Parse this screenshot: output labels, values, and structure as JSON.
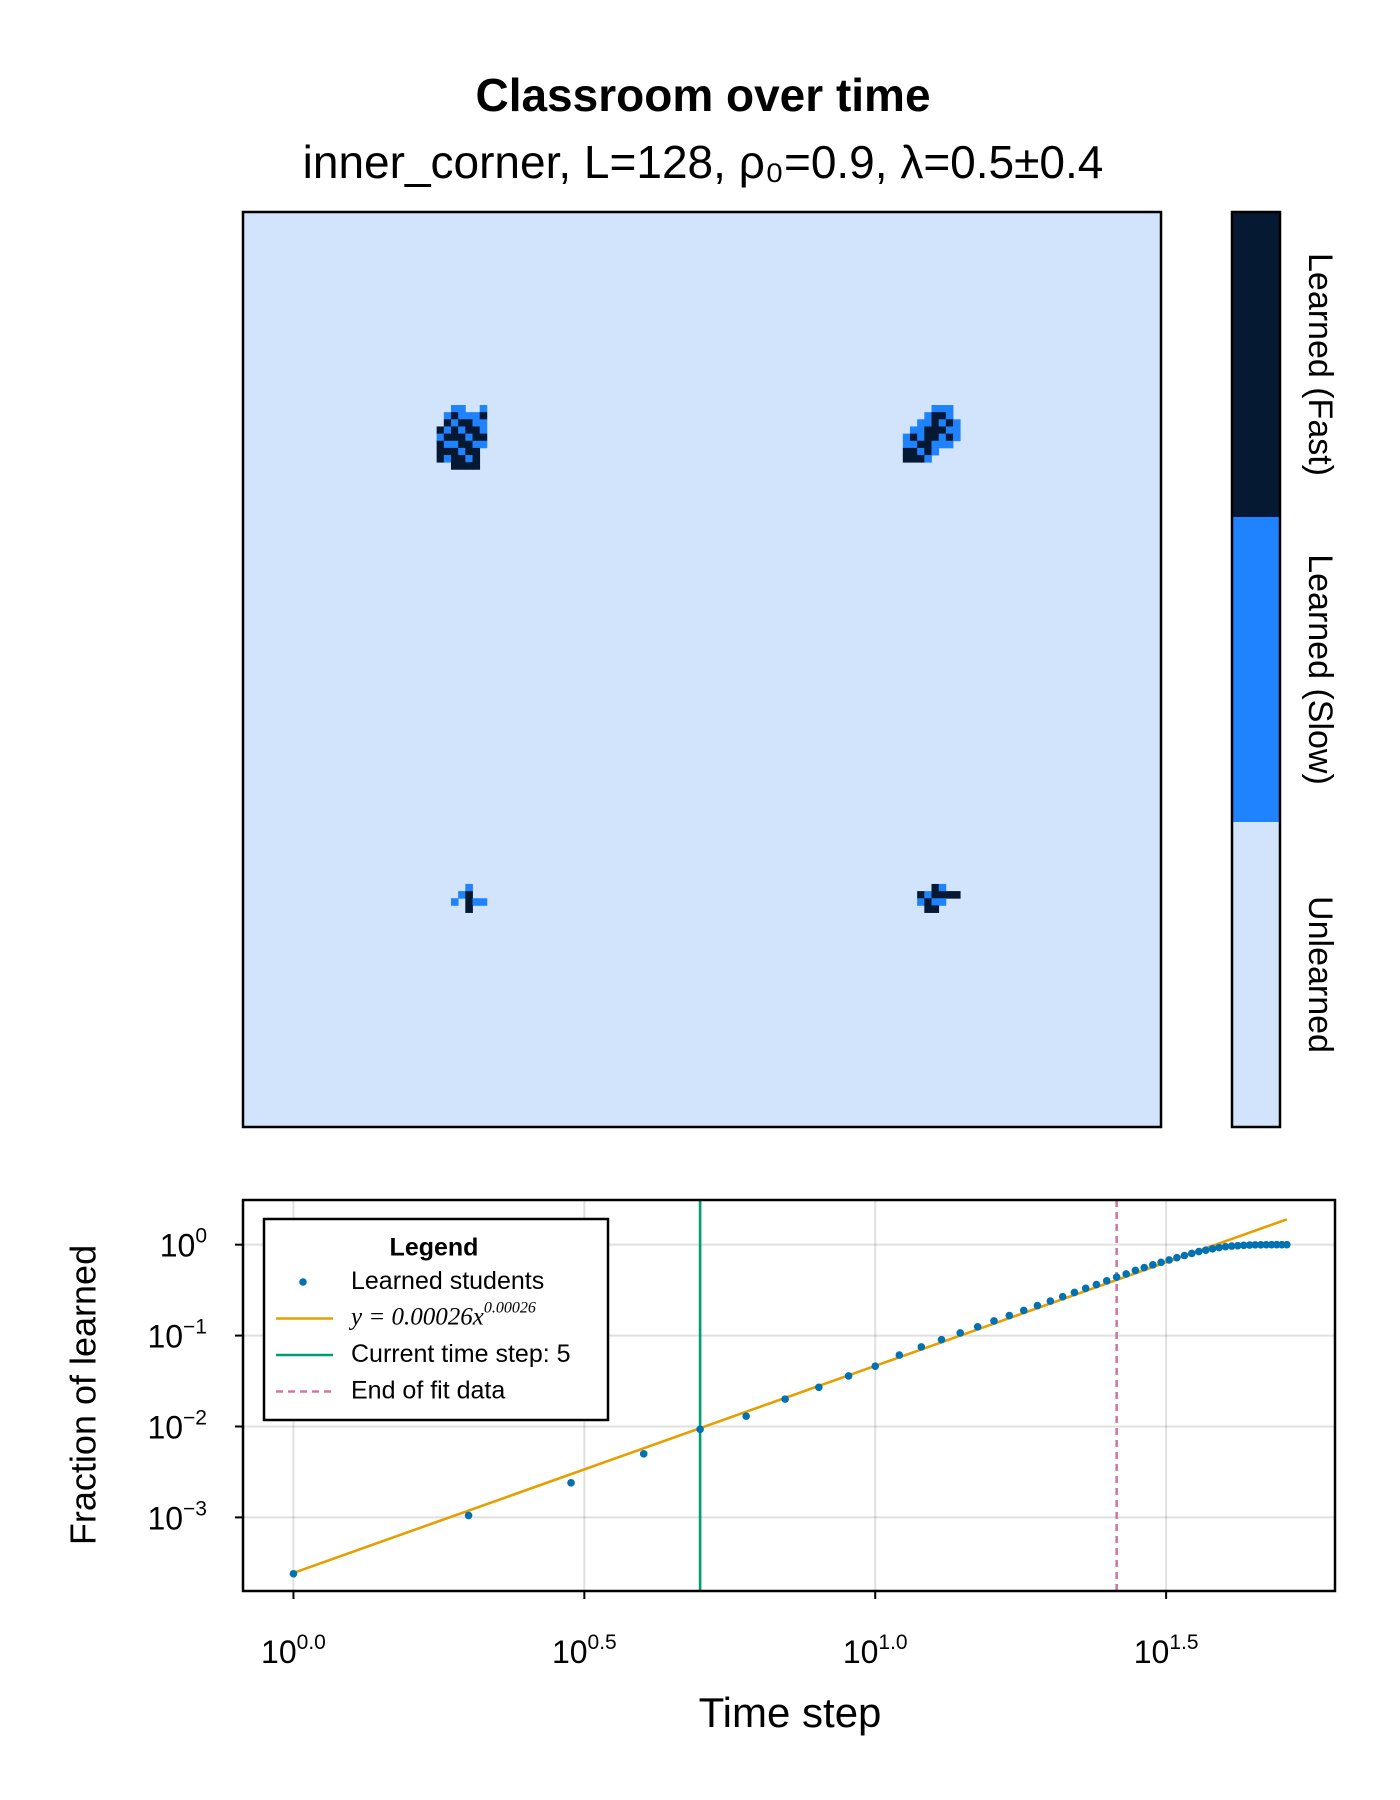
{
  "chart_data": [
    {
      "type": "heatmap",
      "title": "Classroom over time",
      "subtitle": "inner_corner, L=128, ρ₀=0.9, λ=0.5±0.4",
      "xlim": [
        0,
        128
      ],
      "ylim": [
        0,
        128
      ],
      "categories": [
        "Unlearned",
        "Learned (Slow)",
        "Learned (Fast)"
      ],
      "colors": [
        "#d2e4fc",
        "#1f82ff",
        "#061933"
      ],
      "cells": [
        [
          29,
          27,
          1
        ],
        [
          30,
          27,
          1
        ],
        [
          33,
          27,
          1
        ],
        [
          28,
          28,
          1
        ],
        [
          29,
          28,
          2
        ],
        [
          30,
          28,
          1
        ],
        [
          31,
          28,
          1
        ],
        [
          32,
          28,
          1
        ],
        [
          33,
          28,
          2
        ],
        [
          28,
          29,
          2
        ],
        [
          29,
          29,
          1
        ],
        [
          30,
          29,
          2
        ],
        [
          31,
          29,
          2
        ],
        [
          32,
          29,
          1
        ],
        [
          33,
          29,
          1
        ],
        [
          27,
          30,
          2
        ],
        [
          28,
          30,
          1
        ],
        [
          29,
          30,
          2
        ],
        [
          30,
          30,
          1
        ],
        [
          31,
          30,
          2
        ],
        [
          32,
          30,
          2
        ],
        [
          33,
          30,
          1
        ],
        [
          27,
          31,
          1
        ],
        [
          28,
          31,
          2
        ],
        [
          29,
          31,
          2
        ],
        [
          30,
          31,
          2
        ],
        [
          31,
          31,
          1
        ],
        [
          32,
          31,
          2
        ],
        [
          33,
          31,
          2
        ],
        [
          27,
          32,
          2
        ],
        [
          28,
          32,
          1
        ],
        [
          29,
          32,
          1
        ],
        [
          30,
          32,
          2
        ],
        [
          31,
          32,
          2
        ],
        [
          32,
          32,
          1
        ],
        [
          33,
          32,
          1
        ],
        [
          27,
          33,
          2
        ],
        [
          28,
          33,
          2
        ],
        [
          29,
          33,
          2
        ],
        [
          30,
          33,
          1
        ],
        [
          31,
          33,
          2
        ],
        [
          32,
          33,
          2
        ],
        [
          27,
          34,
          2
        ],
        [
          28,
          34,
          1
        ],
        [
          29,
          34,
          2
        ],
        [
          30,
          34,
          2
        ],
        [
          31,
          34,
          1
        ],
        [
          32,
          34,
          2
        ],
        [
          29,
          35,
          2
        ],
        [
          30,
          35,
          2
        ],
        [
          31,
          35,
          2
        ],
        [
          32,
          35,
          2
        ],
        [
          96,
          27,
          1
        ],
        [
          97,
          27,
          1
        ],
        [
          98,
          27,
          1
        ],
        [
          95,
          28,
          1
        ],
        [
          96,
          28,
          2
        ],
        [
          97,
          28,
          2
        ],
        [
          98,
          28,
          1
        ],
        [
          94,
          29,
          1
        ],
        [
          95,
          29,
          1
        ],
        [
          96,
          29,
          2
        ],
        [
          97,
          29,
          1
        ],
        [
          98,
          29,
          2
        ],
        [
          99,
          29,
          1
        ],
        [
          93,
          30,
          1
        ],
        [
          94,
          30,
          1
        ],
        [
          95,
          30,
          2
        ],
        [
          96,
          30,
          2
        ],
        [
          97,
          30,
          2
        ],
        [
          98,
          30,
          1
        ],
        [
          99,
          30,
          1
        ],
        [
          92,
          31,
          1
        ],
        [
          93,
          31,
          2
        ],
        [
          94,
          31,
          1
        ],
        [
          95,
          31,
          2
        ],
        [
          96,
          31,
          2
        ],
        [
          97,
          31,
          1
        ],
        [
          98,
          31,
          2
        ],
        [
          99,
          31,
          1
        ],
        [
          92,
          32,
          1
        ],
        [
          93,
          32,
          1
        ],
        [
          94,
          32,
          2
        ],
        [
          95,
          32,
          2
        ],
        [
          96,
          32,
          1
        ],
        [
          97,
          32,
          1
        ],
        [
          98,
          32,
          1
        ],
        [
          92,
          33,
          2
        ],
        [
          93,
          33,
          2
        ],
        [
          94,
          33,
          1
        ],
        [
          95,
          33,
          2
        ],
        [
          96,
          33,
          1
        ],
        [
          92,
          34,
          2
        ],
        [
          93,
          34,
          2
        ],
        [
          94,
          34,
          2
        ],
        [
          95,
          34,
          1
        ],
        [
          31,
          94,
          1
        ],
        [
          30,
          95,
          1
        ],
        [
          31,
          95,
          2
        ],
        [
          29,
          96,
          1
        ],
        [
          31,
          96,
          2
        ],
        [
          32,
          96,
          1
        ],
        [
          33,
          96,
          1
        ],
        [
          31,
          97,
          2
        ],
        [
          96,
          94,
          2
        ],
        [
          97,
          94,
          1
        ],
        [
          94,
          95,
          2
        ],
        [
          95,
          95,
          1
        ],
        [
          96,
          95,
          2
        ],
        [
          97,
          95,
          2
        ],
        [
          98,
          95,
          2
        ],
        [
          99,
          95,
          2
        ],
        [
          94,
          96,
          1
        ],
        [
          95,
          96,
          2
        ],
        [
          96,
          96,
          1
        ],
        [
          97,
          96,
          1
        ],
        [
          95,
          97,
          2
        ],
        [
          96,
          97,
          2
        ]
      ]
    },
    {
      "type": "line",
      "x_label": "Time step",
      "y_label": "Fraction of learned",
      "xscale": "log",
      "yscale": "log",
      "grid": true,
      "xlim": [
        0.819,
        61.7
      ],
      "ylim": [
        0.000155,
        3.1
      ],
      "xticks": [
        {
          "value": 1,
          "label": "10",
          "exponent": "0.0"
        },
        {
          "value": 3.1623,
          "label": "10",
          "exponent": "0.5"
        },
        {
          "value": 10,
          "label": "10",
          "exponent": "1.0"
        },
        {
          "value": 31.623,
          "label": "10",
          "exponent": "1.5"
        }
      ],
      "yticks": [
        {
          "value": 0.001,
          "label": "10",
          "exponent": "−3"
        },
        {
          "value": 0.01,
          "label": "10",
          "exponent": "−2"
        },
        {
          "value": 0.1,
          "label": "10",
          "exponent": "−1"
        },
        {
          "value": 1,
          "label": "10",
          "exponent": "0"
        }
      ],
      "legend_title": "Legend",
      "legend_position": "top-left",
      "series": [
        {
          "name": "Learned students",
          "kind": "scatter",
          "color": "#0072b2",
          "x": [
            1,
            2,
            3,
            4,
            5,
            6,
            7,
            8,
            9,
            10,
            11,
            12,
            13,
            14,
            15,
            16,
            17,
            18,
            19,
            20,
            21,
            22,
            23,
            24,
            25,
            26,
            27,
            28,
            29,
            30,
            31,
            32,
            33,
            34,
            35,
            36,
            37,
            38,
            39,
            40,
            41,
            42,
            43,
            44,
            45,
            46,
            47,
            48,
            49,
            50,
            51
          ],
          "values": [
            0.00024,
            0.00105,
            0.0024,
            0.005,
            0.0093,
            0.013,
            0.02,
            0.027,
            0.036,
            0.046,
            0.061,
            0.075,
            0.09,
            0.107,
            0.125,
            0.145,
            0.166,
            0.189,
            0.214,
            0.24,
            0.268,
            0.298,
            0.331,
            0.364,
            0.4,
            0.44,
            0.476,
            0.52,
            0.56,
            0.6,
            0.64,
            0.68,
            0.72,
            0.76,
            0.8,
            0.84,
            0.87,
            0.9,
            0.93,
            0.95,
            0.965,
            0.975,
            0.985,
            0.99,
            0.995,
            0.997,
            0.998,
            0.999,
            1,
            1,
            1
          ]
        },
        {
          "name": "y = 0.00026x",
          "name_exponent": "0.00026",
          "kind": "line",
          "color": "#e69f00",
          "x": [
            1,
            51
          ],
          "values": [
            0.000245,
            1.9
          ]
        },
        {
          "name": "Current time step: 5",
          "kind": "vline",
          "color": "#009e73",
          "x": [
            5
          ]
        },
        {
          "name": "End of fit data",
          "kind": "vline",
          "color": "#cc79a7",
          "dash": true,
          "x": [
            26
          ]
        }
      ]
    }
  ]
}
